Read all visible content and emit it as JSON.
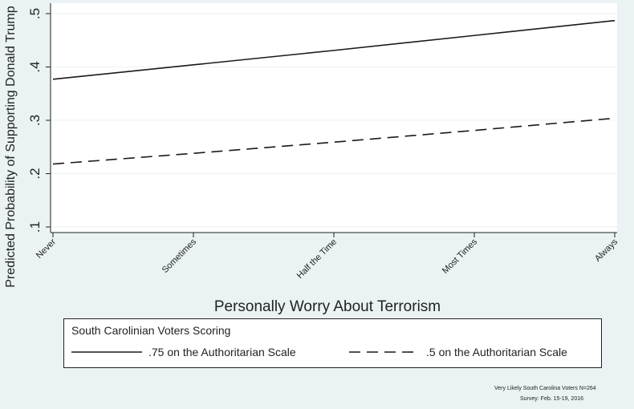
{
  "chart_data": {
    "type": "line",
    "title": "",
    "xlabel": "Personally Worry About Terrorism",
    "ylabel": "Predicted Probability of Supporting Donald Trump",
    "categories": [
      "Never",
      "Sometimes",
      "Half the Time",
      "Most Times",
      "Always"
    ],
    "yticks": [
      ".1",
      ".2",
      ".3",
      ".4",
      ".5"
    ],
    "ylim": [
      0.1,
      0.5
    ],
    "grid": true,
    "series": [
      {
        "name": ".75 on the Authoritarian Scale",
        "style": "solid",
        "values": [
          0.377,
          0.404,
          0.431,
          0.459,
          0.487
        ]
      },
      {
        "name": ".5 on the Authoritarian Scale",
        "style": "dashed",
        "values": [
          0.218,
          0.238,
          0.259,
          0.281,
          0.304
        ]
      }
    ],
    "legend": {
      "title": "South Carolinian Voters Scoring",
      "placement": "bottom"
    },
    "notes": [
      "Very Likely South Carolina Voters N=264",
      "Survey: Feb. 15-19, 2016"
    ]
  },
  "colors": {
    "background": "#eaf2f3",
    "plot_background": "#ffffff",
    "grid": "#eaf2f3",
    "line": "#1a1a1a"
  }
}
